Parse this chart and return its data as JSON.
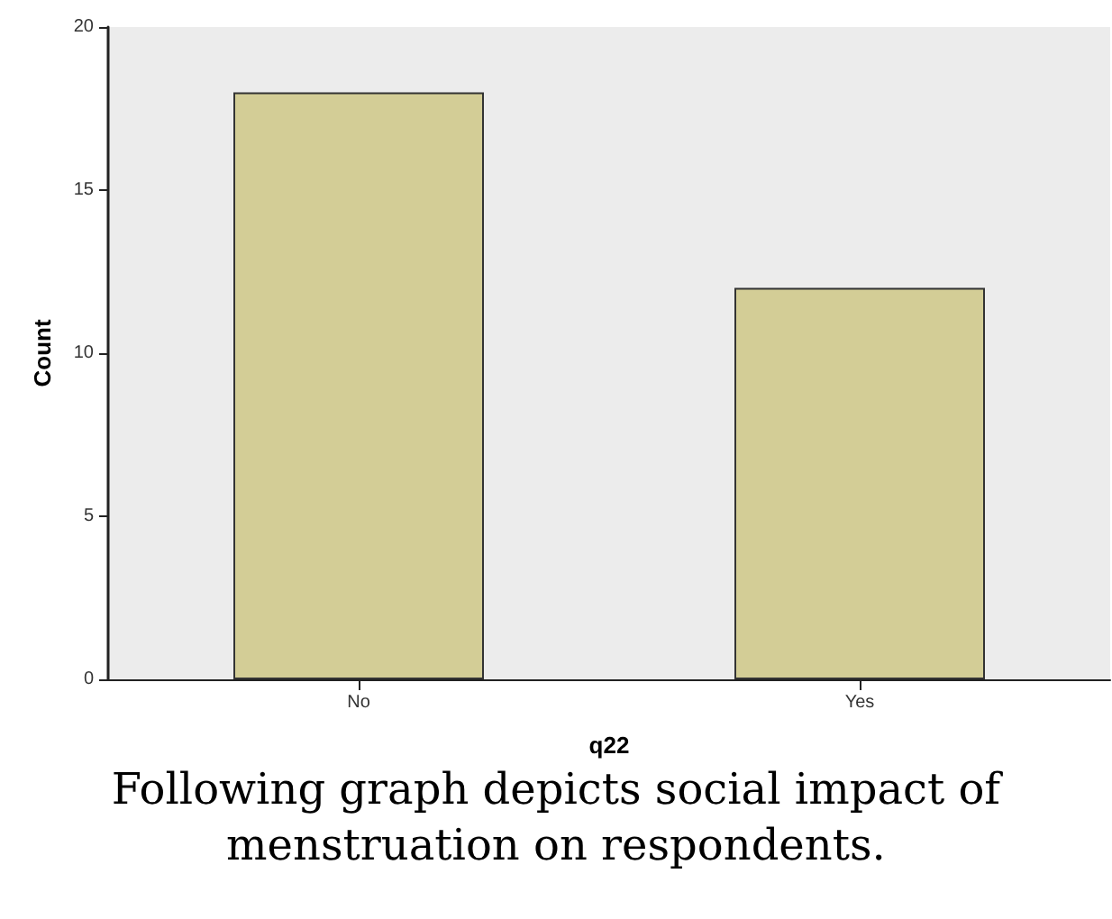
{
  "chart_data": {
    "type": "bar",
    "xlabel": "q22",
    "ylabel": "Count",
    "categories": [
      "No",
      "Yes"
    ],
    "values": [
      18,
      12
    ],
    "color": "#d3cd96",
    "ylim": [
      0,
      20
    ],
    "yticks": [
      0,
      5,
      10,
      15,
      20
    ],
    "grid": false,
    "annotations": [
      "Following graph depicts social impact of menstruation on respondents."
    ]
  }
}
